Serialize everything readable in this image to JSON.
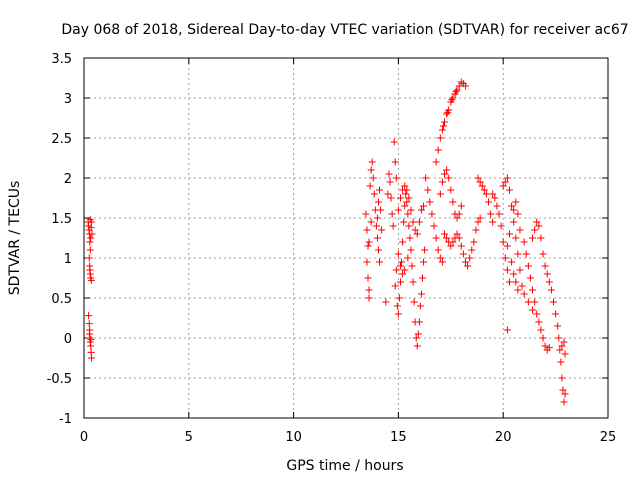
{
  "chart_data": {
    "type": "scatter",
    "title": "Day 068 of 2018, Sidereal Day-to-day VTEC variation (SDTVAR) for receiver ac67",
    "xlabel": "GPS time / hours",
    "ylabel": "SDTVAR / TECUs",
    "xlim": [
      0,
      25
    ],
    "ylim": [
      -1,
      3.5
    ],
    "x_ticks": [
      0,
      5,
      10,
      15,
      20,
      25
    ],
    "y_ticks": [
      -1,
      -0.5,
      0,
      0.5,
      1,
      1.5,
      2,
      2.5,
      3,
      3.5
    ],
    "x_tick_labels": [
      "0",
      "5",
      "10",
      "15",
      "20",
      "25"
    ],
    "y_tick_labels": [
      "-1",
      "-0.5",
      "0",
      "0.5",
      "1",
      "1.5",
      "2",
      "2.5",
      "3",
      "3.5"
    ],
    "grid": true,
    "marker": "+",
    "marker_color": "#ff0000",
    "series": [
      {
        "name": "SDTVAR",
        "points": [
          [
            0.2,
            1.45
          ],
          [
            0.22,
            1.4
          ],
          [
            0.24,
            1.35
          ],
          [
            0.26,
            1.3
          ],
          [
            0.28,
            1.2
          ],
          [
            0.3,
            1.1
          ],
          [
            0.25,
            1.0
          ],
          [
            0.27,
            0.9
          ],
          [
            0.3,
            0.8
          ],
          [
            0.32,
            0.75
          ],
          [
            0.35,
            0.72
          ],
          [
            0.28,
            0.85
          ],
          [
            0.32,
            1.25
          ],
          [
            0.34,
            1.38
          ],
          [
            0.36,
            1.45
          ],
          [
            0.38,
            1.3
          ],
          [
            0.3,
            1.48
          ],
          [
            0.22,
            0.28
          ],
          [
            0.25,
            0.18
          ],
          [
            0.27,
            0.1
          ],
          [
            0.28,
            0.0
          ],
          [
            0.3,
            -0.05
          ],
          [
            0.32,
            -0.1
          ],
          [
            0.34,
            -0.18
          ],
          [
            0.36,
            -0.25
          ],
          [
            0.26,
            0.05
          ],
          [
            0.33,
            -0.02
          ],
          [
            13.45,
            1.55
          ],
          [
            13.5,
            1.35
          ],
          [
            13.55,
            1.15
          ],
          [
            13.5,
            0.95
          ],
          [
            13.55,
            0.75
          ],
          [
            13.6,
            0.6
          ],
          [
            13.6,
            0.5
          ],
          [
            13.65,
            1.9
          ],
          [
            13.7,
            2.1
          ],
          [
            13.75,
            2.2
          ],
          [
            13.8,
            2.0
          ],
          [
            13.85,
            1.8
          ],
          [
            13.9,
            1.6
          ],
          [
            13.95,
            1.4
          ],
          [
            14.0,
            1.25
          ],
          [
            14.05,
            1.1
          ],
          [
            14.1,
            0.95
          ],
          [
            14.0,
            1.5
          ],
          [
            14.05,
            1.7
          ],
          [
            14.1,
            1.85
          ],
          [
            14.15,
            1.6
          ],
          [
            14.2,
            1.35
          ],
          [
            13.7,
            1.45
          ],
          [
            13.6,
            1.2
          ],
          [
            14.4,
            0.45
          ],
          [
            14.5,
            1.8
          ],
          [
            14.55,
            2.05
          ],
          [
            14.6,
            1.95
          ],
          [
            14.65,
            1.75
          ],
          [
            14.7,
            1.55
          ],
          [
            14.75,
            1.4
          ],
          [
            14.8,
            2.45
          ],
          [
            14.85,
            2.2
          ],
          [
            14.9,
            2.0
          ],
          [
            14.9,
            0.85
          ],
          [
            14.85,
            0.65
          ],
          [
            14.95,
            0.4
          ],
          [
            15.0,
            0.3
          ],
          [
            15.05,
            0.5
          ],
          [
            15.1,
            0.7
          ],
          [
            15.15,
            0.95
          ],
          [
            15.2,
            1.2
          ],
          [
            15.25,
            1.45
          ],
          [
            15.3,
            1.65
          ],
          [
            15.35,
            1.8
          ],
          [
            15.4,
            1.7
          ],
          [
            15.45,
            1.55
          ],
          [
            15.5,
            1.4
          ],
          [
            15.55,
            1.25
          ],
          [
            15.6,
            1.1
          ],
          [
            15.65,
            0.9
          ],
          [
            15.7,
            0.7
          ],
          [
            15.75,
            0.45
          ],
          [
            15.8,
            0.2
          ],
          [
            15.85,
            0.0
          ],
          [
            15.9,
            -0.1
          ],
          [
            15.95,
            0.05
          ],
          [
            16.0,
            0.2
          ],
          [
            16.05,
            0.4
          ],
          [
            16.1,
            0.55
          ],
          [
            16.15,
            0.75
          ],
          [
            16.2,
            0.95
          ],
          [
            16.25,
            1.1
          ],
          [
            15.0,
            1.6
          ],
          [
            15.1,
            1.75
          ],
          [
            15.2,
            1.85
          ],
          [
            15.3,
            1.9
          ],
          [
            15.4,
            1.85
          ],
          [
            15.5,
            1.75
          ],
          [
            15.6,
            1.6
          ],
          [
            15.7,
            1.45
          ],
          [
            15.8,
            1.35
          ],
          [
            15.9,
            1.3
          ],
          [
            16.0,
            1.45
          ],
          [
            16.1,
            1.6
          ],
          [
            16.2,
            1.65
          ],
          [
            15.0,
            1.05
          ],
          [
            15.1,
            0.9
          ],
          [
            15.2,
            0.8
          ],
          [
            15.3,
            0.85
          ],
          [
            15.45,
            1.0
          ],
          [
            16.3,
            2.0
          ],
          [
            16.4,
            1.85
          ],
          [
            16.5,
            1.7
          ],
          [
            16.6,
            1.55
          ],
          [
            16.7,
            1.4
          ],
          [
            16.8,
            1.25
          ],
          [
            16.9,
            1.1
          ],
          [
            17.0,
            1.0
          ],
          [
            17.1,
            0.95
          ],
          [
            17.0,
            1.8
          ],
          [
            17.1,
            1.95
          ],
          [
            17.2,
            2.05
          ],
          [
            17.3,
            2.1
          ],
          [
            17.4,
            2.0
          ],
          [
            17.5,
            1.85
          ],
          [
            17.6,
            1.7
          ],
          [
            17.7,
            1.55
          ],
          [
            17.8,
            1.5
          ],
          [
            17.9,
            1.55
          ],
          [
            18.0,
            1.65
          ],
          [
            17.2,
            1.3
          ],
          [
            17.3,
            1.25
          ],
          [
            17.4,
            1.2
          ],
          [
            17.5,
            1.15
          ],
          [
            17.6,
            1.2
          ],
          [
            17.7,
            1.25
          ],
          [
            17.8,
            1.3
          ],
          [
            17.9,
            1.25
          ],
          [
            18.0,
            1.15
          ],
          [
            18.1,
            1.05
          ],
          [
            18.2,
            0.95
          ],
          [
            18.3,
            0.9
          ],
          [
            18.4,
            1.0
          ],
          [
            18.5,
            1.1
          ],
          [
            18.6,
            1.2
          ],
          [
            18.7,
            1.35
          ],
          [
            18.8,
            1.45
          ],
          [
            18.9,
            1.5
          ],
          [
            18.8,
            2.0
          ],
          [
            18.9,
            1.95
          ],
          [
            19.0,
            1.9
          ],
          [
            19.1,
            1.85
          ],
          [
            19.2,
            1.8
          ],
          [
            19.3,
            1.7
          ],
          [
            19.4,
            1.55
          ],
          [
            19.5,
            1.45
          ],
          [
            16.8,
            2.2
          ],
          [
            16.9,
            2.35
          ],
          [
            17.0,
            2.5
          ],
          [
            17.1,
            2.6
          ],
          [
            17.2,
            2.7
          ],
          [
            17.3,
            2.8
          ],
          [
            17.4,
            2.85
          ],
          [
            17.5,
            2.95
          ],
          [
            17.6,
            3.0
          ],
          [
            17.7,
            3.05
          ],
          [
            17.8,
            3.1
          ],
          [
            17.9,
            3.15
          ],
          [
            18.0,
            3.2
          ],
          [
            18.1,
            3.18
          ],
          [
            18.2,
            3.15
          ],
          [
            17.15,
            2.65
          ],
          [
            17.35,
            2.82
          ],
          [
            17.55,
            2.98
          ],
          [
            17.75,
            3.08
          ],
          [
            19.5,
            1.8
          ],
          [
            19.6,
            1.75
          ],
          [
            19.7,
            1.65
          ],
          [
            19.8,
            1.55
          ],
          [
            19.9,
            1.4
          ],
          [
            20.0,
            1.2
          ],
          [
            20.1,
            1.0
          ],
          [
            20.2,
            0.85
          ],
          [
            20.3,
            0.7
          ],
          [
            20.0,
            1.9
          ],
          [
            20.1,
            1.95
          ],
          [
            20.2,
            2.0
          ],
          [
            20.3,
            1.85
          ],
          [
            20.4,
            1.65
          ],
          [
            20.5,
            1.45
          ],
          [
            20.6,
            1.25
          ],
          [
            20.7,
            1.05
          ],
          [
            20.8,
            0.85
          ],
          [
            20.9,
            0.65
          ],
          [
            20.4,
            0.95
          ],
          [
            20.5,
            0.8
          ],
          [
            20.6,
            0.7
          ],
          [
            20.7,
            0.6
          ],
          [
            20.3,
            1.3
          ],
          [
            20.2,
            1.15
          ],
          [
            20.5,
            1.6
          ],
          [
            20.6,
            1.7
          ],
          [
            20.7,
            1.55
          ],
          [
            20.8,
            1.35
          ],
          [
            21.0,
            1.2
          ],
          [
            21.1,
            1.05
          ],
          [
            21.2,
            0.9
          ],
          [
            21.3,
            0.75
          ],
          [
            21.4,
            0.6
          ],
          [
            21.5,
            0.45
          ],
          [
            21.6,
            0.3
          ],
          [
            21.7,
            0.2
          ],
          [
            21.8,
            0.1
          ],
          [
            21.9,
            0.0
          ],
          [
            22.0,
            -0.1
          ],
          [
            22.1,
            -0.15
          ],
          [
            22.2,
            -0.12
          ],
          [
            21.4,
            1.25
          ],
          [
            21.5,
            1.35
          ],
          [
            21.6,
            1.45
          ],
          [
            21.7,
            1.4
          ],
          [
            21.8,
            1.25
          ],
          [
            21.9,
            1.05
          ],
          [
            22.0,
            0.9
          ],
          [
            22.1,
            0.8
          ],
          [
            22.2,
            0.7
          ],
          [
            22.3,
            0.6
          ],
          [
            22.4,
            0.45
          ],
          [
            22.5,
            0.3
          ],
          [
            22.6,
            0.15
          ],
          [
            22.65,
            0.0
          ],
          [
            22.7,
            -0.15
          ],
          [
            22.75,
            -0.3
          ],
          [
            22.8,
            -0.5
          ],
          [
            22.85,
            -0.65
          ],
          [
            22.9,
            -0.8
          ],
          [
            22.95,
            -0.7
          ],
          [
            22.8,
            -0.1
          ],
          [
            22.9,
            -0.05
          ],
          [
            22.95,
            -0.2
          ],
          [
            20.2,
            0.1
          ],
          [
            21.0,
            0.55
          ],
          [
            21.2,
            0.45
          ],
          [
            21.4,
            0.35
          ]
        ]
      }
    ]
  }
}
